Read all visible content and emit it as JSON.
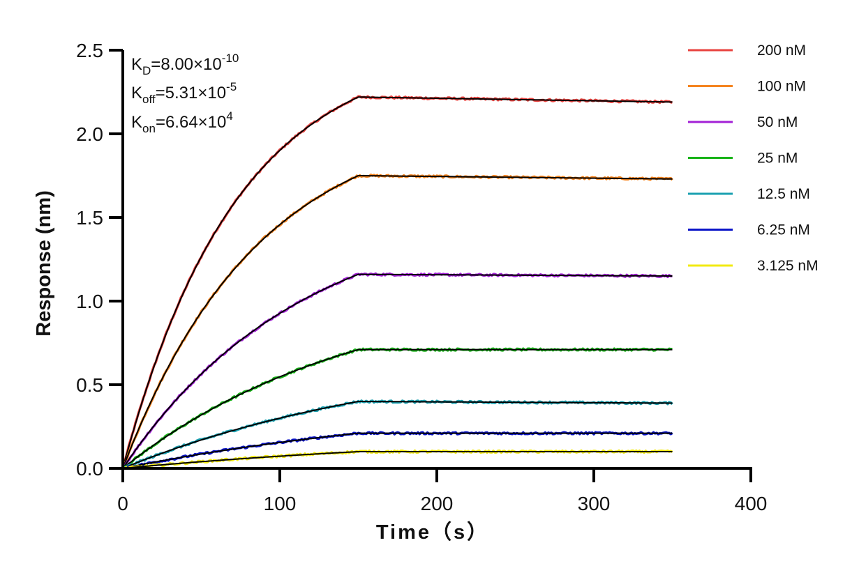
{
  "chart_data": {
    "type": "line",
    "title": "",
    "xlabel": "Time（s）",
    "ylabel": "Response (nm)",
    "xlim": [
      0,
      400
    ],
    "ylim": [
      0,
      2.5
    ],
    "x_ticks": [
      "0",
      "100",
      "200",
      "300",
      "400"
    ],
    "y_ticks": [
      "0.0",
      "0.5",
      "1.0",
      "1.5",
      "2.0",
      "2.5"
    ],
    "grid": false,
    "legend_position": "right",
    "association_end": 150,
    "dissociation_end": 350,
    "annotations": {
      "kd": {
        "base": "K",
        "sub": "D",
        "value": "=8.00×10",
        "exp": "-10"
      },
      "koff": {
        "base": "K",
        "sub": "off",
        "value": "=5.31×10",
        "exp": "-5"
      },
      "kon": {
        "base": "K",
        "sub": "on",
        "value": "=6.64×10",
        "exp": "4"
      }
    },
    "fit_color": "#000000",
    "series": [
      {
        "name": "200 nM",
        "color": "#e8433f",
        "plateau": 2.22,
        "end": 2.19
      },
      {
        "name": "100 nM",
        "color": "#f5841f",
        "plateau": 1.75,
        "end": 1.73
      },
      {
        "name": "50 nM",
        "color": "#a321d6",
        "plateau": 1.16,
        "end": 1.15
      },
      {
        "name": "25 nM",
        "color": "#17b317",
        "plateau": 0.71,
        "end": 0.71
      },
      {
        "name": "12.5 nM",
        "color": "#1aa0b0",
        "plateau": 0.4,
        "end": 0.39
      },
      {
        "name": "6.25 nM",
        "color": "#0b14c8",
        "plateau": 0.21,
        "end": 0.21
      },
      {
        "name": "3.125 nM",
        "color": "#f2ea12",
        "plateau": 0.1,
        "end": 0.1
      }
    ]
  }
}
